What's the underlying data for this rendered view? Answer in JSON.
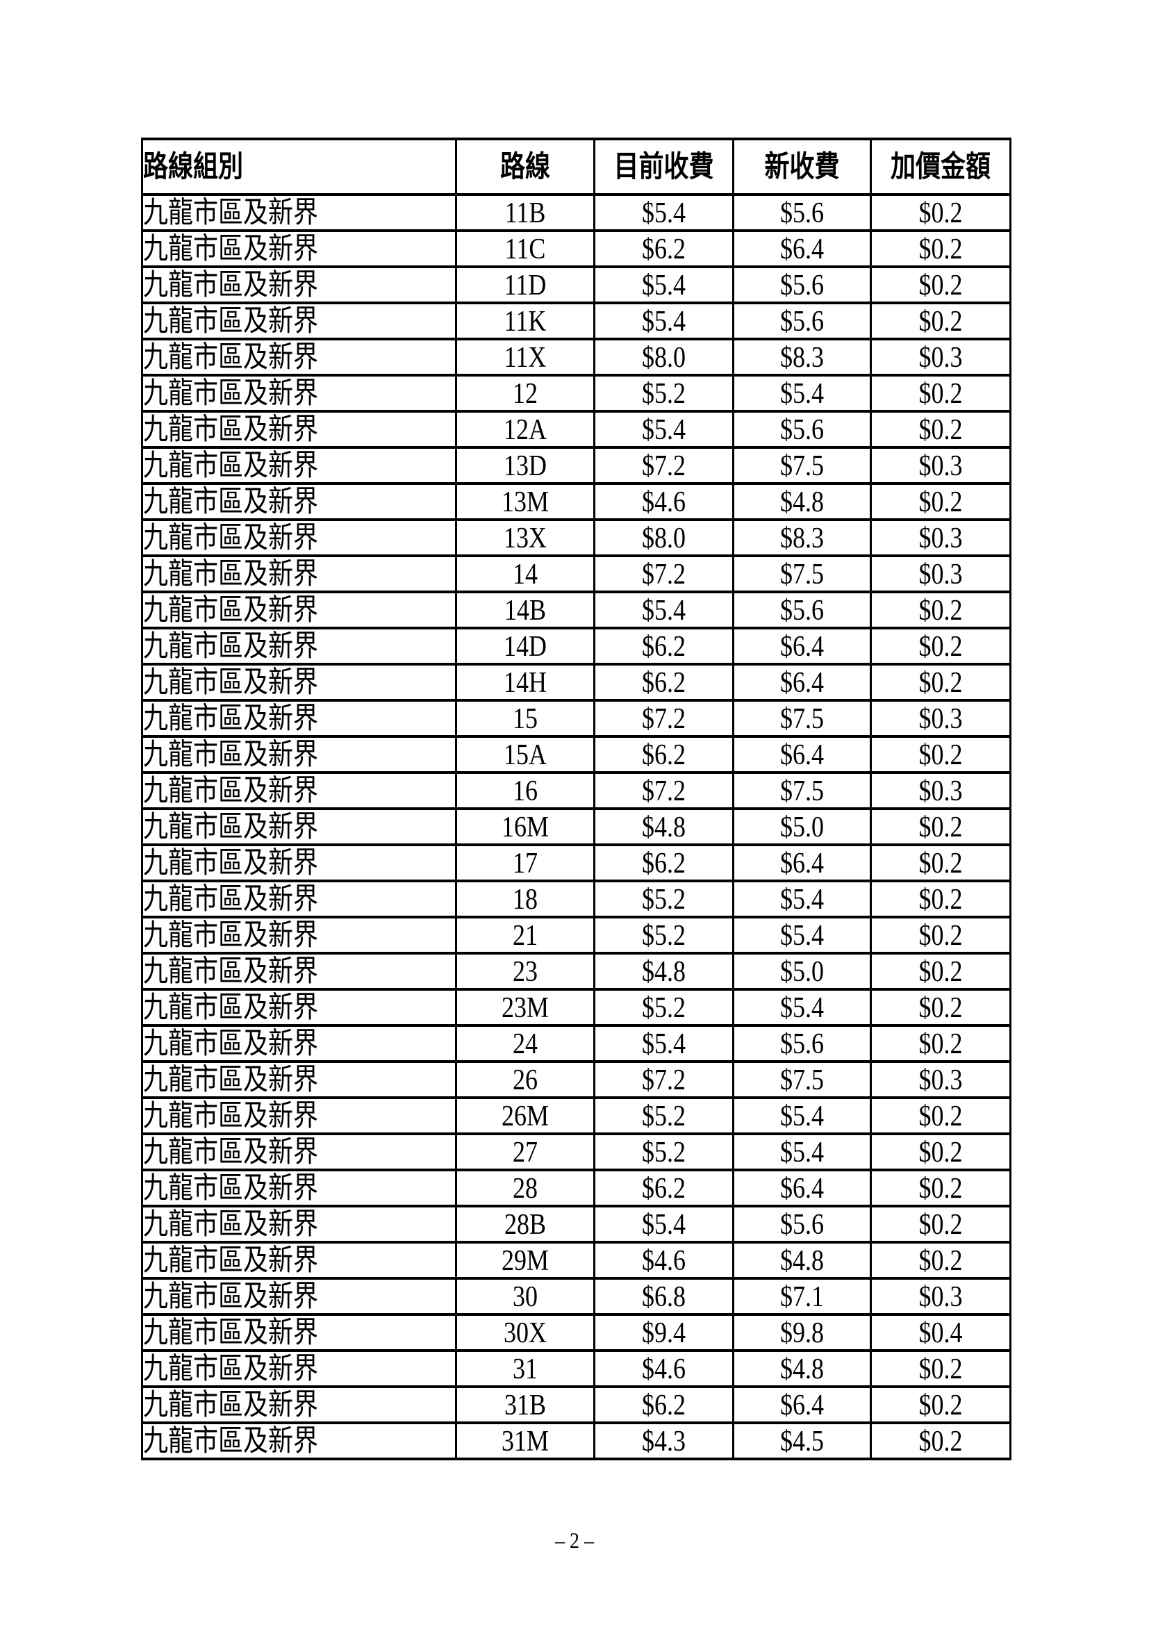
{
  "page": {
    "footer_label": "– 2 –"
  },
  "table": {
    "columns": [
      "路線組別",
      "路線",
      "目前收費",
      "新收費",
      "加價金額"
    ],
    "rows": [
      {
        "group": "九龍市區及新界",
        "route": "11B",
        "current": "$5.4",
        "new": "$5.6",
        "increase": "$0.2"
      },
      {
        "group": "九龍市區及新界",
        "route": "11C",
        "current": "$6.2",
        "new": "$6.4",
        "increase": "$0.2"
      },
      {
        "group": "九龍市區及新界",
        "route": "11D",
        "current": "$5.4",
        "new": "$5.6",
        "increase": "$0.2"
      },
      {
        "group": "九龍市區及新界",
        "route": "11K",
        "current": "$5.4",
        "new": "$5.6",
        "increase": "$0.2"
      },
      {
        "group": "九龍市區及新界",
        "route": "11X",
        "current": "$8.0",
        "new": "$8.3",
        "increase": "$0.3"
      },
      {
        "group": "九龍市區及新界",
        "route": "12",
        "current": "$5.2",
        "new": "$5.4",
        "increase": "$0.2"
      },
      {
        "group": "九龍市區及新界",
        "route": "12A",
        "current": "$5.4",
        "new": "$5.6",
        "increase": "$0.2"
      },
      {
        "group": "九龍市區及新界",
        "route": "13D",
        "current": "$7.2",
        "new": "$7.5",
        "increase": "$0.3"
      },
      {
        "group": "九龍市區及新界",
        "route": "13M",
        "current": "$4.6",
        "new": "$4.8",
        "increase": "$0.2"
      },
      {
        "group": "九龍市區及新界",
        "route": "13X",
        "current": "$8.0",
        "new": "$8.3",
        "increase": "$0.3"
      },
      {
        "group": "九龍市區及新界",
        "route": "14",
        "current": "$7.2",
        "new": "$7.5",
        "increase": "$0.3"
      },
      {
        "group": "九龍市區及新界",
        "route": "14B",
        "current": "$5.4",
        "new": "$5.6",
        "increase": "$0.2"
      },
      {
        "group": "九龍市區及新界",
        "route": "14D",
        "current": "$6.2",
        "new": "$6.4",
        "increase": "$0.2"
      },
      {
        "group": "九龍市區及新界",
        "route": "14H",
        "current": "$6.2",
        "new": "$6.4",
        "increase": "$0.2"
      },
      {
        "group": "九龍市區及新界",
        "route": "15",
        "current": "$7.2",
        "new": "$7.5",
        "increase": "$0.3"
      },
      {
        "group": "九龍市區及新界",
        "route": "15A",
        "current": "$6.2",
        "new": "$6.4",
        "increase": "$0.2"
      },
      {
        "group": "九龍市區及新界",
        "route": "16",
        "current": "$7.2",
        "new": "$7.5",
        "increase": "$0.3"
      },
      {
        "group": "九龍市區及新界",
        "route": "16M",
        "current": "$4.8",
        "new": "$5.0",
        "increase": "$0.2"
      },
      {
        "group": "九龍市區及新界",
        "route": "17",
        "current": "$6.2",
        "new": "$6.4",
        "increase": "$0.2"
      },
      {
        "group": "九龍市區及新界",
        "route": "18",
        "current": "$5.2",
        "new": "$5.4",
        "increase": "$0.2"
      },
      {
        "group": "九龍市區及新界",
        "route": "21",
        "current": "$5.2",
        "new": "$5.4",
        "increase": "$0.2"
      },
      {
        "group": "九龍市區及新界",
        "route": "23",
        "current": "$4.8",
        "new": "$5.0",
        "increase": "$0.2"
      },
      {
        "group": "九龍市區及新界",
        "route": "23M",
        "current": "$5.2",
        "new": "$5.4",
        "increase": "$0.2"
      },
      {
        "group": "九龍市區及新界",
        "route": "24",
        "current": "$5.4",
        "new": "$5.6",
        "increase": "$0.2"
      },
      {
        "group": "九龍市區及新界",
        "route": "26",
        "current": "$7.2",
        "new": "$7.5",
        "increase": "$0.3"
      },
      {
        "group": "九龍市區及新界",
        "route": "26M",
        "current": "$5.2",
        "new": "$5.4",
        "increase": "$0.2"
      },
      {
        "group": "九龍市區及新界",
        "route": "27",
        "current": "$5.2",
        "new": "$5.4",
        "increase": "$0.2"
      },
      {
        "group": "九龍市區及新界",
        "route": "28",
        "current": "$6.2",
        "new": "$6.4",
        "increase": "$0.2"
      },
      {
        "group": "九龍市區及新界",
        "route": "28B",
        "current": "$5.4",
        "new": "$5.6",
        "increase": "$0.2"
      },
      {
        "group": "九龍市區及新界",
        "route": "29M",
        "current": "$4.6",
        "new": "$4.8",
        "increase": "$0.2"
      },
      {
        "group": "九龍市區及新界",
        "route": "30",
        "current": "$6.8",
        "new": "$7.1",
        "increase": "$0.3"
      },
      {
        "group": "九龍市區及新界",
        "route": "30X",
        "current": "$9.4",
        "new": "$9.8",
        "increase": "$0.4"
      },
      {
        "group": "九龍市區及新界",
        "route": "31",
        "current": "$4.6",
        "new": "$4.8",
        "increase": "$0.2"
      },
      {
        "group": "九龍市區及新界",
        "route": "31B",
        "current": "$6.2",
        "new": "$6.4",
        "increase": "$0.2"
      },
      {
        "group": "九龍市區及新界",
        "route": "31M",
        "current": "$4.3",
        "new": "$4.5",
        "increase": "$0.2"
      }
    ]
  }
}
